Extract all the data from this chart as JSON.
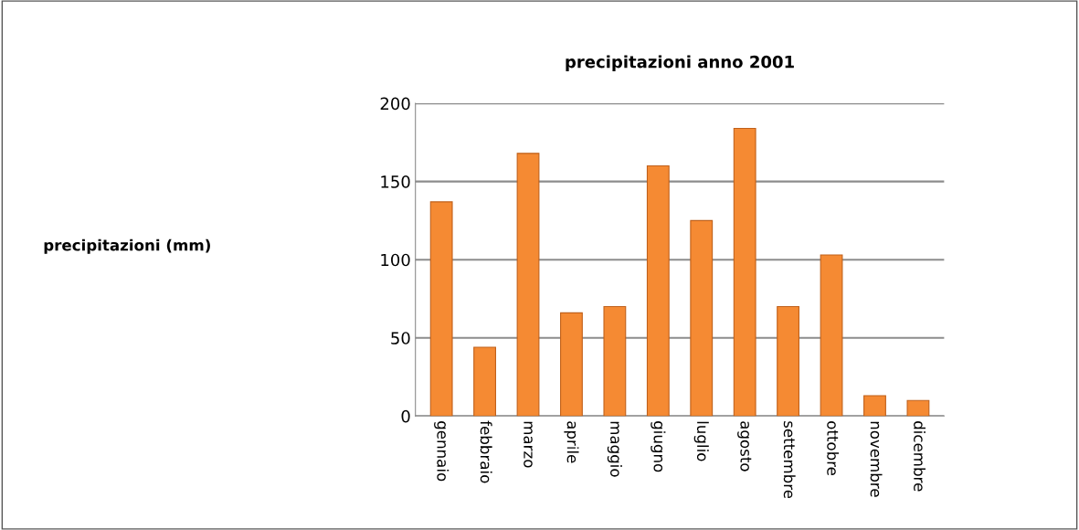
{
  "chart_data": {
    "type": "bar",
    "title": "precipitazioni anno 2001",
    "annotations": [
      "precipitazioni (mm)"
    ],
    "categories": [
      "gennaio",
      "febbraio",
      "marzo",
      "aprile",
      "maggio",
      "giugno",
      "luglio",
      "agosto",
      "settembre",
      "ottobre",
      "novembre",
      "dicembre"
    ],
    "values": [
      137,
      44,
      168,
      66,
      70,
      160,
      125,
      184,
      70,
      103,
      13,
      10
    ],
    "color": "#f58a33",
    "ylim": [
      0,
      200
    ],
    "yticks": [
      0,
      50,
      100,
      150,
      200
    ],
    "grid": "y",
    "legend": false
  }
}
